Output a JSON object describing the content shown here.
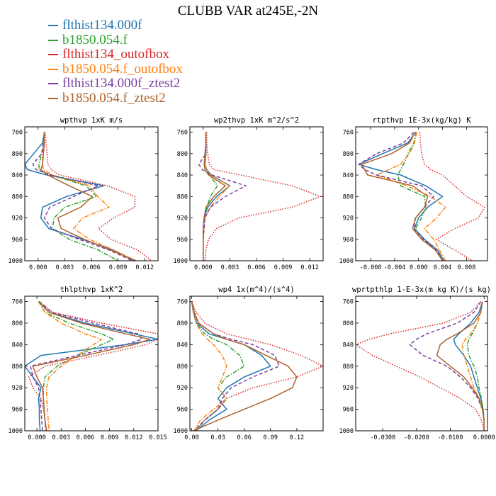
{
  "title": "CLUBB VAR at245E,-2N",
  "colors": {
    "s1": "#1f77b4",
    "s2": "#2ca02c",
    "s3": "#d62728",
    "s4": "#ff7f0e",
    "s5": "#7b3fa0",
    "s6": "#b0622a"
  },
  "legend": [
    {
      "label": "flthist134.000f",
      "color": "#1f77b4",
      "style": "solid"
    },
    {
      "label": "b1850.054.f",
      "color": "#2ca02c",
      "style": "dashdot"
    },
    {
      "label": "flthist134_outofbox",
      "color": "#d62728",
      "style": "dotted"
    },
    {
      "label": "b1850.054.f_outofbox",
      "color": "#ff7f0e",
      "style": "dashdot"
    },
    {
      "label": "flthist134.000f_ztest2",
      "color": "#7b3fa0",
      "style": "dashed"
    },
    {
      "label": "b1850.054.f_ztest2",
      "color": "#b0622a",
      "style": "solid"
    }
  ],
  "chart_data": [
    {
      "type": "line",
      "title": "wpthvp  1xK m/s",
      "y": [
        760,
        780,
        800,
        820,
        830,
        840,
        860,
        880,
        900,
        920,
        940,
        960,
        980,
        1000
      ],
      "ylim": [
        1000,
        750
      ],
      "yticks": [
        760,
        800,
        840,
        880,
        920,
        960,
        1000
      ],
      "xlim": [
        -0.0015,
        0.0135
      ],
      "xticks": [
        0.0,
        0.003,
        0.006,
        0.009,
        0.012
      ],
      "xticklabels": [
        "0.000",
        "0.003",
        "0.006",
        "0.009",
        "0.012"
      ],
      "series": [
        {
          "x": [
            0.0007,
            0.0005,
            -0.0005,
            -0.0015,
            -0.0012,
            0.001,
            0.0074,
            0.0032,
            0.0005,
            0.0003,
            0.0012,
            0.005,
            0.0085,
            0.0108
          ]
        },
        {
          "x": [
            0.0007,
            0.0006,
            0.0004,
            0.0001,
            0.0001,
            0.0015,
            0.0054,
            0.0066,
            0.003,
            0.0018,
            0.0016,
            0.0035,
            0.0068,
            0.009
          ]
        },
        {
          "x": [
            0.0008,
            0.0009,
            0.001,
            0.0011,
            0.0015,
            0.0024,
            0.0078,
            0.0109,
            0.0109,
            0.0085,
            0.0068,
            0.0082,
            0.0112,
            0.0128
          ]
        },
        {
          "x": [
            0.0007,
            0.0006,
            0.0005,
            0.0005,
            0.0006,
            0.0016,
            0.0058,
            0.0067,
            0.008,
            0.005,
            0.004,
            0.0058,
            0.0085,
            0.011
          ]
        },
        {
          "x": [
            0.0007,
            0.0006,
            0.0004,
            -0.0006,
            -0.0002,
            0.0014,
            0.0068,
            0.004,
            0.0013,
            0.0007,
            0.0015,
            0.0046,
            0.008,
            0.0106
          ]
        },
        {
          "x": [
            0.0007,
            0.0007,
            0.0006,
            0.0005,
            0.0003,
            0.0011,
            0.0035,
            0.0061,
            0.0048,
            0.0022,
            0.0026,
            0.0052,
            0.0082,
            0.011
          ]
        }
      ]
    },
    {
      "type": "line",
      "title": "wp2thvp  1xK m^2/s^2",
      "y": [
        760,
        780,
        800,
        820,
        830,
        840,
        860,
        880,
        900,
        920,
        940,
        960,
        980,
        1000
      ],
      "ylim": [
        1000,
        750
      ],
      "yticks": [
        760,
        800,
        840,
        880,
        920,
        960,
        1000
      ],
      "xlim": [
        -0.0015,
        0.0135
      ],
      "xticks": [
        0.0,
        0.003,
        0.006,
        0.009,
        0.012
      ],
      "xticklabels": [
        "0.000",
        "0.003",
        "0.006",
        "0.009",
        "0.012"
      ],
      "series": [
        {
          "x": [
            0.0003,
            0.0003,
            0.0003,
            0.0002,
            0.0004,
            0.0009,
            0.003,
            0.0015,
            0.0005,
            0.0001,
            0.0,
            0.0,
            0.0,
            0.0
          ]
        },
        {
          "x": [
            0.0003,
            0.0003,
            0.0003,
            0.0002,
            0.0004,
            0.0007,
            0.0016,
            0.0008,
            0.0004,
            0.0001,
            0.0,
            0.0,
            0.0,
            0.0
          ]
        },
        {
          "x": [
            0.0004,
            0.0004,
            0.0005,
            0.0007,
            0.0012,
            0.0042,
            0.01,
            0.0132,
            0.01,
            0.004,
            0.0015,
            0.0006,
            0.0003,
            0.0002
          ]
        },
        {
          "x": [
            0.0003,
            0.0003,
            0.0003,
            0.0002,
            0.0004,
            0.0008,
            0.003,
            0.0018,
            0.0008,
            0.0002,
            0.0001,
            0.0,
            0.0,
            0.0
          ]
        },
        {
          "x": [
            0.0003,
            0.0003,
            0.0003,
            -0.0005,
            -0.0001,
            0.001,
            0.0048,
            0.0025,
            0.0008,
            0.0002,
            0.0001,
            0.0,
            0.0,
            0.0
          ]
        },
        {
          "x": [
            0.0003,
            0.0003,
            0.0002,
            0.0001,
            0.0002,
            0.0006,
            0.0025,
            0.0012,
            0.0003,
            0.0001,
            0.0,
            0.0,
            0.0,
            0.0
          ]
        }
      ]
    },
    {
      "type": "line",
      "title": "rtpthvp  1E-3x(kg/kg) K",
      "y": [
        760,
        780,
        800,
        820,
        830,
        840,
        860,
        880,
        900,
        920,
        940,
        960,
        980,
        1000
      ],
      "ylim": [
        1000,
        750
      ],
      "yticks": [
        760,
        800,
        840,
        880,
        920,
        960,
        1000
      ],
      "xlim": [
        -0.0105,
        0.0115
      ],
      "xticks": [
        -0.008,
        -0.004,
        0.0,
        0.004,
        0.008
      ],
      "xticklabels": [
        "-0.008",
        "-0.004",
        "0.000",
        "0.004",
        "0.008"
      ],
      "series": [
        {
          "x": [
            -0.0005,
            -0.0018,
            -0.006,
            -0.01,
            -0.007,
            -0.003,
            0.0012,
            0.004,
            0.0015,
            0.0,
            -0.0007,
            0.001,
            0.0032,
            0.0042
          ]
        },
        {
          "x": [
            -0.0004,
            -0.0008,
            -0.0018,
            -0.0025,
            -0.003,
            -0.0035,
            -0.003,
            0.001,
            0.0012,
            0.0005,
            -0.0005,
            0.0005,
            0.003,
            0.004
          ]
        },
        {
          "x": [
            0.0002,
            0.0003,
            0.0005,
            0.001,
            0.002,
            0.004,
            0.006,
            0.008,
            0.011,
            0.01,
            0.006,
            0.003,
            0.006,
            0.009
          ]
        },
        {
          "x": [
            -0.0003,
            -0.0007,
            -0.0015,
            -0.003,
            -0.005,
            -0.007,
            -0.002,
            0.002,
            0.0045,
            0.003,
            0.001,
            0.0025,
            0.0035,
            0.0045
          ]
        },
        {
          "x": [
            -0.0008,
            -0.0025,
            -0.007,
            -0.01,
            -0.009,
            -0.007,
            0.0005,
            0.0025,
            0.001,
            -0.0005,
            -0.0008,
            0.0008,
            0.003,
            0.004
          ]
        },
        {
          "x": [
            -0.0006,
            -0.0015,
            -0.0045,
            -0.0095,
            -0.009,
            -0.0085,
            -0.001,
            0.0015,
            0.001,
            -0.0005,
            -0.001,
            0.0005,
            0.0028,
            0.004
          ]
        }
      ]
    },
    {
      "type": "line",
      "title": "thlpthvp  1xK^2",
      "y": [
        760,
        780,
        800,
        820,
        830,
        840,
        860,
        880,
        900,
        920,
        940,
        960,
        980,
        1000
      ],
      "ylim": [
        1000,
        750
      ],
      "yticks": [
        760,
        800,
        840,
        880,
        920,
        960,
        1000
      ],
      "xlim": [
        -0.0015,
        0.015
      ],
      "xticks": [
        0.0,
        0.003,
        0.006,
        0.009,
        0.012,
        0.015
      ],
      "xticklabels": [
        "0.000",
        "0.003",
        "0.006",
        "0.009",
        "0.012",
        "0.015"
      ],
      "series": [
        {
          "x": [
            0.0002,
            0.0015,
            0.006,
            0.012,
            0.015,
            0.011,
            0.0005,
            -0.0015,
            -0.0005,
            0.0005,
            0.0002,
            0.0003,
            0.0003,
            0.0004
          ]
        },
        {
          "x": [
            0.0002,
            0.001,
            0.004,
            0.008,
            0.0095,
            0.008,
            0.005,
            0.0025,
            0.001,
            0.0008,
            0.0008,
            0.0009,
            0.001,
            0.0011
          ]
        },
        {
          "x": [
            0.0003,
            0.002,
            0.008,
            0.015,
            0.015,
            0.0135,
            0.0075,
            0.001,
            -0.001,
            -0.0005,
            0.0005,
            0.0008,
            0.001,
            0.0012
          ]
        },
        {
          "x": [
            0.0003,
            0.001,
            0.003,
            0.006,
            0.008,
            0.007,
            0.005,
            0.003,
            0.0015,
            0.0012,
            0.0012,
            0.0013,
            0.0014,
            0.0015
          ]
        },
        {
          "x": [
            0.0003,
            0.0018,
            0.007,
            0.0125,
            0.013,
            0.011,
            0.005,
            -0.0008,
            -0.0005,
            0.0002,
            0.0004,
            0.0005,
            0.0006,
            0.0007
          ]
        },
        {
          "x": [
            0.0003,
            0.0015,
            0.0055,
            0.011,
            0.014,
            0.012,
            0.006,
            -0.0005,
            0.0,
            0.0007,
            0.0008,
            0.0009,
            0.001,
            0.0012
          ]
        }
      ]
    },
    {
      "type": "line",
      "title": "wp4  1x(m^4)/(s^4)",
      "y": [
        760,
        780,
        800,
        820,
        830,
        840,
        860,
        880,
        900,
        920,
        940,
        960,
        980,
        1000
      ],
      "ylim": [
        1000,
        750
      ],
      "yticks": [
        760,
        800,
        840,
        880,
        920,
        960,
        1000
      ],
      "xlim": [
        -0.002,
        0.15
      ],
      "xticks": [
        0.0,
        0.03,
        0.06,
        0.09,
        0.12
      ],
      "xticklabels": [
        "0.00",
        "0.03",
        "0.06",
        "0.09",
        "0.12"
      ],
      "series": [
        {
          "x": [
            0.0,
            0.002,
            0.006,
            0.02,
            0.04,
            0.06,
            0.08,
            0.09,
            0.06,
            0.04,
            0.03,
            0.04,
            0.02,
            0.005
          ]
        },
        {
          "x": [
            0.0,
            0.002,
            0.005,
            0.015,
            0.025,
            0.04,
            0.055,
            0.06,
            0.04,
            0.03,
            0.04,
            0.03,
            0.015,
            0.005
          ]
        },
        {
          "x": [
            0.0,
            0.005,
            0.015,
            0.04,
            0.065,
            0.09,
            0.125,
            0.15,
            0.12,
            0.07,
            0.04,
            0.03,
            0.015,
            0.003
          ]
        },
        {
          "x": [
            0.0,
            0.002,
            0.005,
            0.012,
            0.018,
            0.025,
            0.035,
            0.04,
            0.035,
            0.03,
            0.04,
            0.025,
            0.01,
            0.003
          ]
        },
        {
          "x": [
            0.0,
            0.003,
            0.008,
            0.025,
            0.045,
            0.07,
            0.095,
            0.1,
            0.07,
            0.045,
            0.035,
            0.03,
            0.015,
            0.003
          ]
        },
        {
          "x": [
            0.0,
            0.003,
            0.008,
            0.025,
            0.04,
            0.06,
            0.085,
            0.11,
            0.12,
            0.115,
            0.09,
            0.06,
            0.03,
            0.002
          ]
        }
      ]
    },
    {
      "type": "line",
      "title": "wprtpthlp  1-E-3x(m kg K)/(s kg)",
      "y": [
        760,
        780,
        800,
        820,
        830,
        840,
        860,
        880,
        900,
        920,
        940,
        960,
        980,
        1000
      ],
      "ylim": [
        1000,
        750
      ],
      "yticks": [
        760,
        800,
        840,
        880,
        920,
        960,
        1000
      ],
      "xlim": [
        -0.038,
        0.001
      ],
      "xticks": [
        -0.03,
        -0.02,
        -0.01,
        0.0
      ],
      "xticklabels": [
        "-0.0300",
        "-0.0200",
        "-0.0100",
        "0.0000"
      ],
      "series": [
        {
          "x": [
            -0.0005,
            -0.0015,
            -0.004,
            -0.0075,
            -0.009,
            -0.0085,
            -0.006,
            -0.004,
            -0.003,
            -0.002,
            -0.001,
            -0.0003,
            0.0,
            0.0
          ]
        },
        {
          "x": [
            -0.0005,
            -0.001,
            -0.002,
            -0.0035,
            -0.0045,
            -0.005,
            -0.0045,
            -0.003,
            -0.002,
            -0.0015,
            -0.0008,
            -0.0003,
            0.0,
            0.0
          ]
        },
        {
          "x": [
            -0.001,
            -0.004,
            -0.012,
            -0.028,
            -0.034,
            -0.038,
            -0.033,
            -0.026,
            -0.019,
            -0.013,
            -0.007,
            -0.0025,
            -0.0008,
            0.0
          ]
        },
        {
          "x": [
            -0.0005,
            -0.001,
            -0.002,
            -0.004,
            -0.0055,
            -0.0065,
            -0.006,
            -0.005,
            -0.004,
            -0.003,
            -0.0015,
            -0.0005,
            0.0,
            0.0
          ]
        },
        {
          "x": [
            -0.001,
            -0.003,
            -0.008,
            -0.017,
            -0.02,
            -0.022,
            -0.018,
            -0.011,
            -0.007,
            -0.004,
            -0.0018,
            -0.0005,
            0.0,
            0.0
          ]
        },
        {
          "x": [
            -0.0005,
            -0.001,
            -0.003,
            -0.008,
            -0.011,
            -0.013,
            -0.014,
            -0.01,
            -0.006,
            -0.0035,
            -0.0015,
            -0.0005,
            0.0,
            0.0
          ]
        }
      ]
    }
  ]
}
